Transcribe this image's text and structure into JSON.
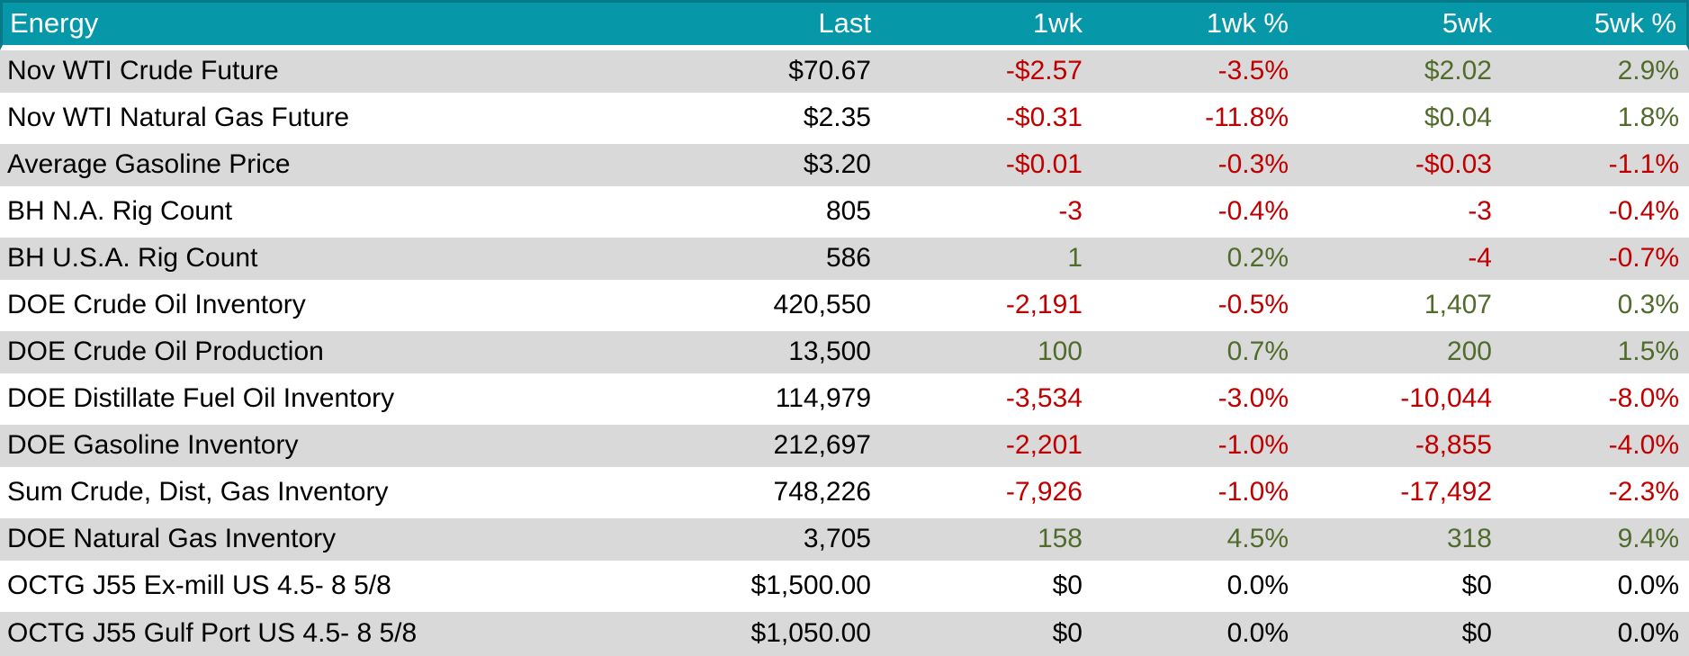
{
  "palette": {
    "header_bg": "#0698A8",
    "header_border": "#067A88",
    "header_text": "#FFFFFF",
    "band_gray": "#D9D9D9",
    "band_white": "#FFFFFF",
    "negative_text": "#C00000",
    "positive_text": "#506B2C",
    "neutral_text": "#000000"
  },
  "chart_data": {
    "type": "table",
    "title": "Energy",
    "legend_note": "red = negative change, olive green = positive change, black = no change",
    "columns": [
      {
        "label": "Energy",
        "align": "left"
      },
      {
        "label": "Last",
        "align": "right"
      },
      {
        "label": "1wk",
        "align": "right"
      },
      {
        "label": "1wk %",
        "align": "right"
      },
      {
        "label": "5wk",
        "align": "right"
      },
      {
        "label": "5wk %",
        "align": "right"
      }
    ],
    "rows": [
      {
        "cells": [
          "Nov WTI Crude Future",
          "$70.67",
          "-$2.57",
          "-3.5%",
          "$2.02",
          "2.9%"
        ],
        "styles": [
          "label",
          "base",
          "neg",
          "neg",
          "pos",
          "pos"
        ]
      },
      {
        "cells": [
          "Nov WTI Natural Gas Future",
          "$2.35",
          "-$0.31",
          "-11.8%",
          "$0.04",
          "1.8%"
        ],
        "styles": [
          "label",
          "base",
          "neg",
          "neg",
          "pos",
          "pos"
        ]
      },
      {
        "cells": [
          "Average Gasoline Price",
          "$3.20",
          "-$0.01",
          "-0.3%",
          "-$0.03",
          "-1.1%"
        ],
        "styles": [
          "label",
          "base",
          "neg",
          "neg",
          "neg",
          "neg"
        ]
      },
      {
        "cells": [
          "BH N.A. Rig Count",
          "805",
          "-3",
          "-0.4%",
          "-3",
          "-0.4%"
        ],
        "styles": [
          "label",
          "base",
          "neg",
          "neg",
          "neg",
          "neg"
        ]
      },
      {
        "cells": [
          "BH U.S.A. Rig Count",
          "586",
          "1",
          "0.2%",
          "-4",
          "-0.7%"
        ],
        "styles": [
          "label",
          "base",
          "pos",
          "pos",
          "neg",
          "neg"
        ]
      },
      {
        "cells": [
          "DOE Crude Oil Inventory",
          "420,550",
          "-2,191",
          "-0.5%",
          "1,407",
          "0.3%"
        ],
        "styles": [
          "label",
          "base",
          "neg",
          "neg",
          "pos",
          "pos"
        ]
      },
      {
        "cells": [
          "DOE Crude Oil Production",
          "13,500",
          "100",
          "0.7%",
          "200",
          "1.5%"
        ],
        "styles": [
          "label",
          "base",
          "pos",
          "pos",
          "pos",
          "pos"
        ]
      },
      {
        "cells": [
          "DOE Distillate Fuel Oil Inventory",
          "114,979",
          "-3,534",
          "-3.0%",
          "-10,044",
          "-8.0%"
        ],
        "styles": [
          "label",
          "base",
          "neg",
          "neg",
          "neg",
          "neg"
        ]
      },
      {
        "cells": [
          "DOE Gasoline Inventory",
          "212,697",
          "-2,201",
          "-1.0%",
          "-8,855",
          "-4.0%"
        ],
        "styles": [
          "label",
          "base",
          "neg",
          "neg",
          "neg",
          "neg"
        ]
      },
      {
        "cells": [
          "Sum Crude, Dist, Gas Inventory",
          "748,226",
          "-7,926",
          "-1.0%",
          "-17,492",
          "-2.3%"
        ],
        "styles": [
          "label",
          "base",
          "neg",
          "neg",
          "neg",
          "neg"
        ]
      },
      {
        "cells": [
          "DOE Natural Gas Inventory",
          "3,705",
          "158",
          "4.5%",
          "318",
          "9.4%"
        ],
        "styles": [
          "label",
          "base",
          "pos",
          "pos",
          "pos",
          "pos"
        ]
      },
      {
        "cells": [
          "OCTG J55 Ex-mill US 4.5- 8 5/8",
          "$1,500.00",
          "$0",
          "0.0%",
          "$0",
          "0.0%"
        ],
        "styles": [
          "label",
          "base",
          "flat",
          "flat",
          "flat",
          "flat"
        ]
      },
      {
        "cells": [
          "OCTG J55 Gulf Port US 4.5- 8 5/8",
          "$1,050.00",
          "$0",
          "0.0%",
          "$0",
          "0.0%"
        ],
        "styles": [
          "label",
          "base",
          "flat",
          "flat",
          "flat",
          "flat"
        ]
      }
    ]
  }
}
